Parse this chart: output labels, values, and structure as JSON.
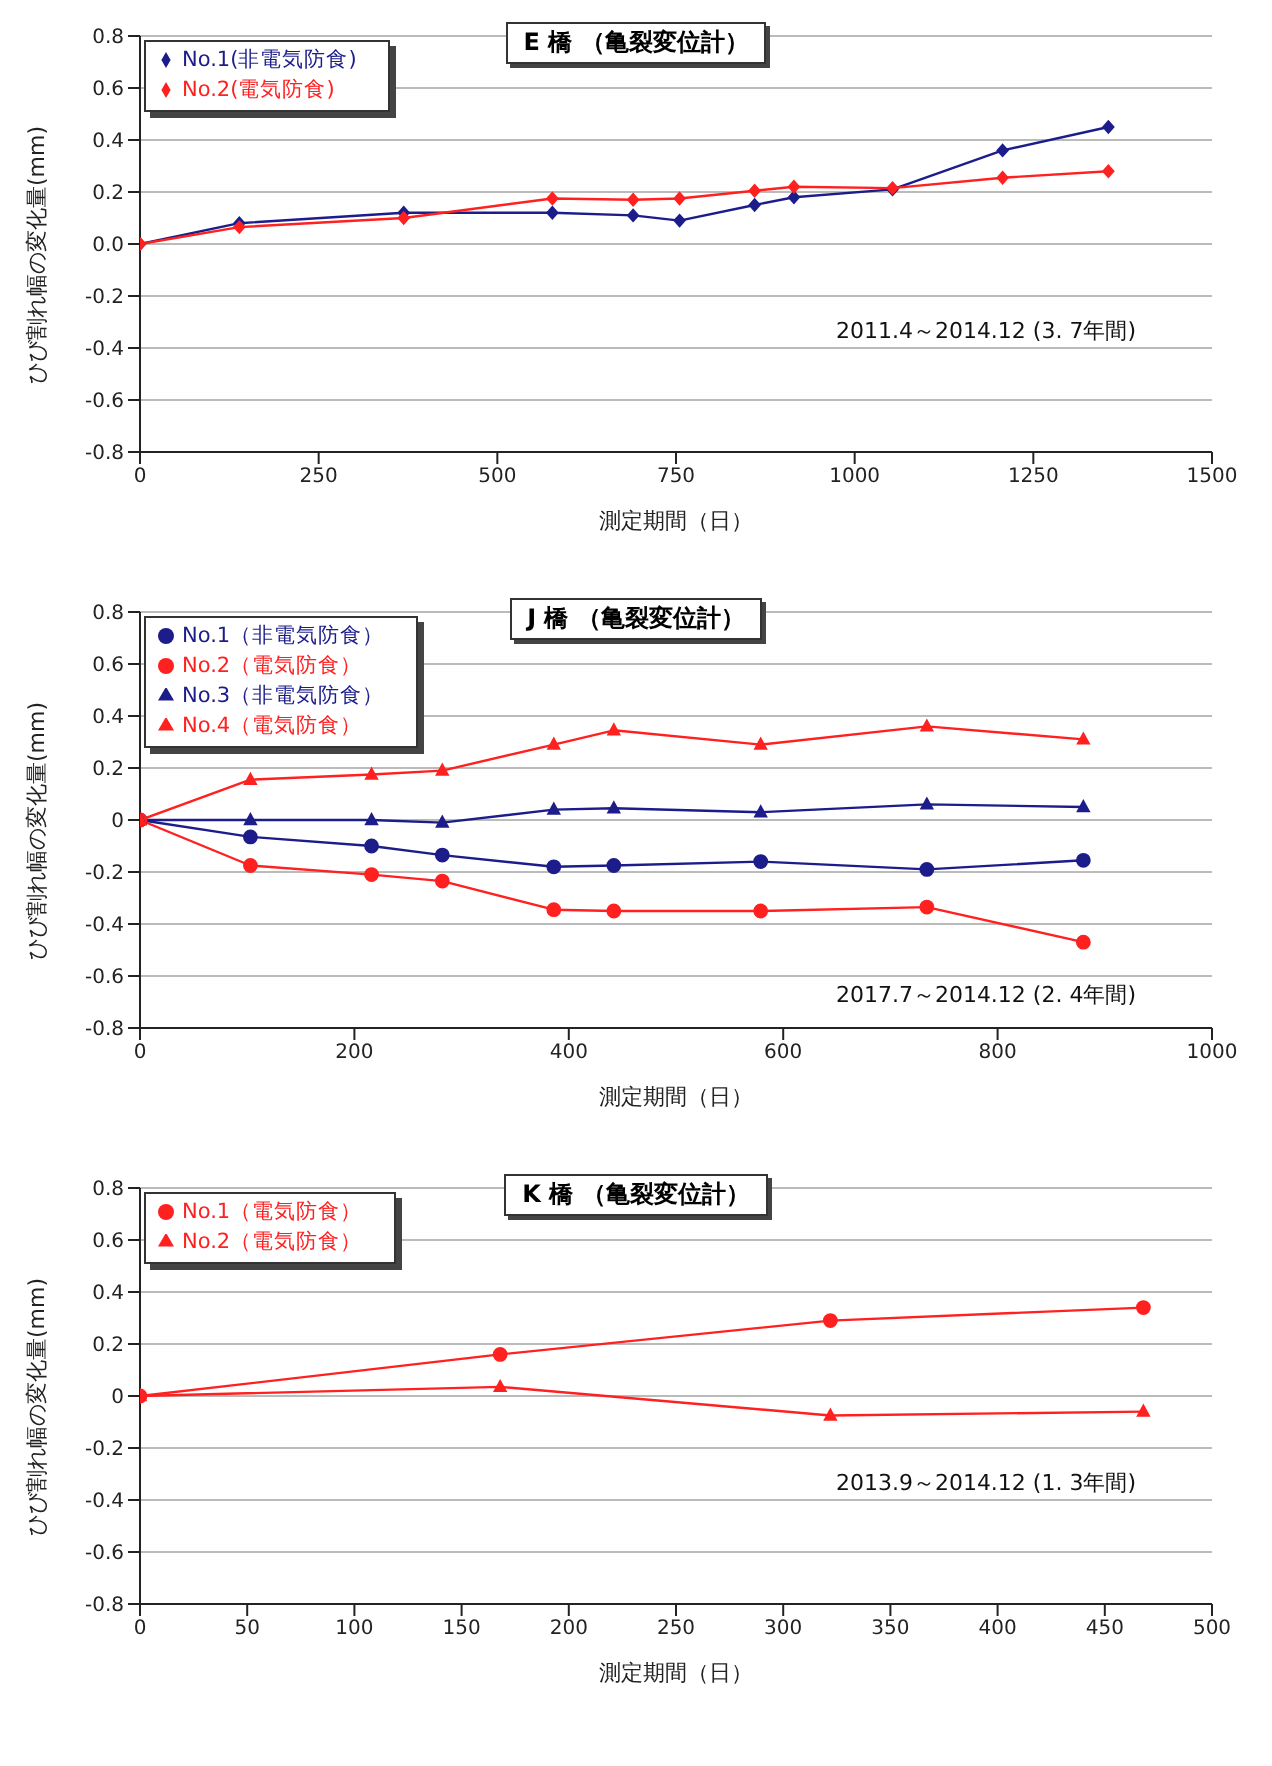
{
  "chart_data": [
    {
      "type": "line",
      "title": "E 橋 （亀裂変位計）",
      "xlabel": "測定期間（日）",
      "ylabel": "ひび割れ幅の変化量(mm)",
      "annotations": [
        "2011.4～2014.12 (3. 7年間)"
      ],
      "xlim": [
        0,
        1500
      ],
      "xticks": [
        0,
        250,
        500,
        750,
        1000,
        1250,
        1500
      ],
      "ylim": [
        -0.8,
        0.8
      ],
      "yticks": [
        -0.8,
        -0.6,
        -0.4,
        -0.2,
        {
          "value": 0,
          "label": "0.0"
        },
        0.2,
        0.4,
        0.6,
        0.8
      ],
      "grid": "y",
      "legend": "top left",
      "series": [
        {
          "name": "No.1(非電気防食)",
          "color": "#1c1c8a",
          "marker": "diamond",
          "x": [
            0,
            139,
            369,
            577,
            690,
            755,
            860,
            915,
            1053,
            1207,
            1355
          ],
          "values": [
            0,
            0.08,
            0.12,
            0.12,
            0.11,
            0.09,
            0.15,
            0.18,
            0.21,
            0.36,
            0.45
          ]
        },
        {
          "name": "No.2(電気防食)",
          "color": "#ff2020",
          "marker": "diamond",
          "x": [
            0,
            139,
            369,
            577,
            690,
            755,
            860,
            915,
            1053,
            1207,
            1355
          ],
          "values": [
            0,
            0.065,
            0.1,
            0.175,
            0.17,
            0.175,
            0.205,
            0.22,
            0.215,
            0.255,
            0.28
          ]
        }
      ]
    },
    {
      "type": "line",
      "title": "J 橋 （亀裂変位計）",
      "xlabel": "測定期間（日）",
      "ylabel": "ひび割れ幅の変化量(mm)",
      "annotations": [
        "2017.7～2014.12 (2. 4年間)"
      ],
      "xlim": [
        0,
        1000
      ],
      "xticks": [
        0,
        200,
        400,
        600,
        800,
        1000
      ],
      "ylim": [
        -0.8,
        0.8
      ],
      "yticks": [
        -0.8,
        -0.6,
        -0.4,
        -0.2,
        0,
        0.2,
        0.4,
        0.6,
        0.8
      ],
      "grid": "y",
      "legend": "top left",
      "series": [
        {
          "name": "No.1（非電気防食）",
          "color": "#1c1c8a",
          "marker": "circle",
          "x": [
            0,
            103,
            216,
            282,
            386,
            442,
            579,
            734,
            880
          ],
          "values": [
            0,
            -0.065,
            -0.1,
            -0.135,
            -0.18,
            -0.175,
            -0.16,
            -0.19,
            -0.155
          ]
        },
        {
          "name": "No.2（電気防食）",
          "color": "#ff2020",
          "marker": "circle",
          "x": [
            0,
            103,
            216,
            282,
            386,
            442,
            579,
            734,
            880
          ],
          "values": [
            0,
            -0.175,
            -0.21,
            -0.235,
            -0.345,
            -0.35,
            -0.35,
            -0.335,
            -0.47
          ]
        },
        {
          "name": "No.3（非電気防食）",
          "color": "#1c1c8a",
          "marker": "triangle",
          "x": [
            0,
            103,
            216,
            282,
            386,
            442,
            579,
            734,
            880
          ],
          "values": [
            0,
            0,
            0,
            -0.01,
            0.04,
            0.045,
            0.03,
            0.06,
            0.05
          ]
        },
        {
          "name": "No.4（電気防食）",
          "color": "#ff2020",
          "marker": "triangle",
          "x": [
            0,
            103,
            216,
            282,
            386,
            442,
            579,
            734,
            880
          ],
          "values": [
            0,
            0.155,
            0.175,
            0.19,
            0.29,
            0.345,
            0.29,
            0.36,
            0.31
          ]
        }
      ]
    },
    {
      "type": "line",
      "title": "K 橋 （亀裂変位計）",
      "xlabel": "測定期間（日）",
      "ylabel": "ひび割れ幅の変化量(mm)",
      "annotations": [
        "2013.9～2014.12 (1. 3年間)"
      ],
      "xlim": [
        0,
        500
      ],
      "xticks": [
        0,
        50,
        100,
        150,
        200,
        250,
        300,
        350,
        400,
        450,
        500
      ],
      "ylim": [
        -0.8,
        0.8
      ],
      "yticks": [
        -0.8,
        -0.6,
        -0.4,
        -0.2,
        0,
        0.2,
        0.4,
        0.6,
        0.8
      ],
      "grid": "y",
      "legend": "top left",
      "series": [
        {
          "name": "No.1（電気防食）",
          "color": "#ff2020",
          "marker": "circle",
          "x": [
            0,
            168,
            322,
            468
          ],
          "values": [
            0,
            0.16,
            0.29,
            0.34
          ]
        },
        {
          "name": "No.2（電気防食）",
          "color": "#ff2020",
          "marker": "triangle",
          "x": [
            0,
            168,
            322,
            468
          ],
          "values": [
            0,
            0.035,
            -0.075,
            -0.06
          ]
        }
      ]
    }
  ]
}
